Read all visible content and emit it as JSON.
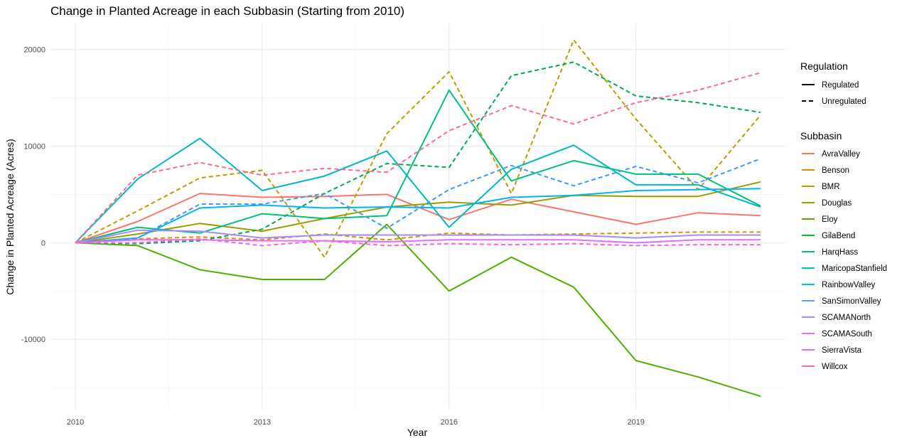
{
  "chart_data": {
    "type": "line",
    "title": "Change in Planted Acreage in each Subbasin (Starting from 2010)",
    "xlabel": "Year",
    "ylabel": "Change in Planted Acreage (Acres)",
    "xlim": [
      2009.6,
      2021.4
    ],
    "ylim": [
      -17200,
      22700
    ],
    "x_ticks": [
      2010,
      2013,
      2016,
      2019
    ],
    "y_ticks": [
      -10000,
      0,
      10000,
      20000
    ],
    "y_tick_labels": [
      "-10000",
      "0",
      "10000",
      "20000"
    ],
    "grid": true,
    "legend_position": "right",
    "x": [
      2010,
      2011,
      2012,
      2013,
      2014,
      2015,
      2016,
      2017,
      2018,
      2019,
      2020,
      2021
    ],
    "legend": {
      "linetype_title": "Regulation",
      "linetype_entries": [
        {
          "label": "Regulated",
          "dash": "solid"
        },
        {
          "label": "Unregulated",
          "dash": "dashed"
        }
      ],
      "color_title": "Subbasin",
      "color_entries": [
        {
          "label": "AvraValley",
          "color": "#F8766D"
        },
        {
          "label": "Benson",
          "color": "#DE8C00"
        },
        {
          "label": "BMR",
          "color": "#B79F00"
        },
        {
          "label": "Douglas",
          "color": "#7CAE00"
        },
        {
          "label": "Eloy",
          "color": "#4DAF00"
        },
        {
          "label": "GilaBend",
          "color": "#00BA38"
        },
        {
          "label": "HarqHass",
          "color": "#00BF7D"
        },
        {
          "label": "MaricopaStanfield",
          "color": "#00BFC4"
        },
        {
          "label": "RainbowValley",
          "color": "#00B4F0"
        },
        {
          "label": "SanSimonValley",
          "color": "#619CFF"
        },
        {
          "label": "SCAMANorth",
          "color": "#A58AFF"
        },
        {
          "label": "SCAMASouth",
          "color": "#DF70F8"
        },
        {
          "label": "SierraVista",
          "color": "#F564E3"
        },
        {
          "label": "Willcox",
          "color": "#FF6C91"
        }
      ]
    },
    "series": [
      {
        "name": "AvraValley",
        "regulation": "Regulated",
        "color": "#F8766D",
        "dashed": false,
        "values": [
          0,
          2200,
          5100,
          4700,
          4800,
          5000,
          2400,
          4500,
          3200,
          1900,
          3100,
          2800
        ]
      },
      {
        "name": "Benson",
        "regulation": "Unregulated",
        "color": "#DE8C00",
        "dashed": true,
        "values": [
          0,
          400,
          600,
          300,
          900,
          300,
          1000,
          800,
          900,
          1000,
          1100,
          1100
        ]
      },
      {
        "name": "BMR",
        "regulation": "Unregulated",
        "color": "#B79F00",
        "dashed": true,
        "values": [
          0,
          3300,
          6700,
          7500,
          -1500,
          11300,
          17700,
          5100,
          21000,
          12800,
          5500,
          13200
        ]
      },
      {
        "name": "Douglas",
        "regulation": "Regulated",
        "color": "#9C9C00",
        "dashed": false,
        "values": [
          0,
          900,
          2000,
          1200,
          2500,
          3700,
          4200,
          3900,
          4900,
          4800,
          4800,
          6300
        ]
      },
      {
        "name": "Eloy",
        "regulation": "Regulated",
        "color": "#4DAF00",
        "dashed": false,
        "values": [
          0,
          -300,
          -2800,
          -3800,
          -3800,
          1900,
          -5000,
          -1500,
          -4600,
          -12200,
          -13900,
          -15900
        ]
      },
      {
        "name": "GilaBend",
        "regulation": "Unregulated",
        "color": "#00A850",
        "dashed": true,
        "values": [
          0,
          -100,
          200,
          1400,
          5100,
          8200,
          7800,
          17300,
          18700,
          15200,
          14500,
          13500
        ]
      },
      {
        "name": "HarqHass",
        "regulation": "Regulated",
        "color": "#00BF7D",
        "dashed": false,
        "values": [
          0,
          1600,
          1000,
          3000,
          2500,
          2800,
          15800,
          6400,
          8500,
          7100,
          7100,
          3800
        ]
      },
      {
        "name": "MaricopaStanfield",
        "regulation": "Regulated",
        "color": "#00B7C0",
        "dashed": false,
        "values": [
          0,
          6600,
          10800,
          5400,
          6900,
          9500,
          1600,
          7600,
          10100,
          6000,
          6000,
          3700
        ]
      },
      {
        "name": "RainbowValley",
        "regulation": "Regulated",
        "color": "#00B4F0",
        "dashed": false,
        "values": [
          0,
          500,
          3600,
          3900,
          3600,
          3700,
          3600,
          4700,
          4900,
          5400,
          5500,
          5600
        ]
      },
      {
        "name": "SanSimonValley",
        "regulation": "Unregulated",
        "color": "#3D9BF5",
        "dashed": true,
        "values": [
          0,
          500,
          4000,
          4000,
          5100,
          1500,
          5500,
          8000,
          5900,
          7900,
          6200,
          8700
        ]
      },
      {
        "name": "SCAMANorth",
        "regulation": "Regulated",
        "color": "#A58AFF",
        "dashed": false,
        "values": [
          0,
          1300,
          1200,
          500,
          800,
          800,
          800,
          800,
          800,
          500,
          800,
          800
        ]
      },
      {
        "name": "SCAMASouth",
        "regulation": "Regulated",
        "color": "#DF70F8",
        "dashed": false,
        "values": [
          0,
          300,
          300,
          200,
          200,
          100,
          300,
          300,
          300,
          0,
          300,
          300
        ]
      },
      {
        "name": "SierraVista",
        "regulation": "Unregulated",
        "color": "#F564E3",
        "dashed": true,
        "values": [
          0,
          0,
          400,
          -300,
          200,
          -300,
          -100,
          -200,
          -100,
          -300,
          -200,
          -200
        ]
      },
      {
        "name": "Willcox",
        "regulation": "Unregulated",
        "color": "#FF6C91",
        "dashed": true,
        "values": [
          0,
          7000,
          8300,
          7000,
          7700,
          7300,
          11600,
          14200,
          12300,
          14500,
          15800,
          17600
        ]
      }
    ]
  }
}
